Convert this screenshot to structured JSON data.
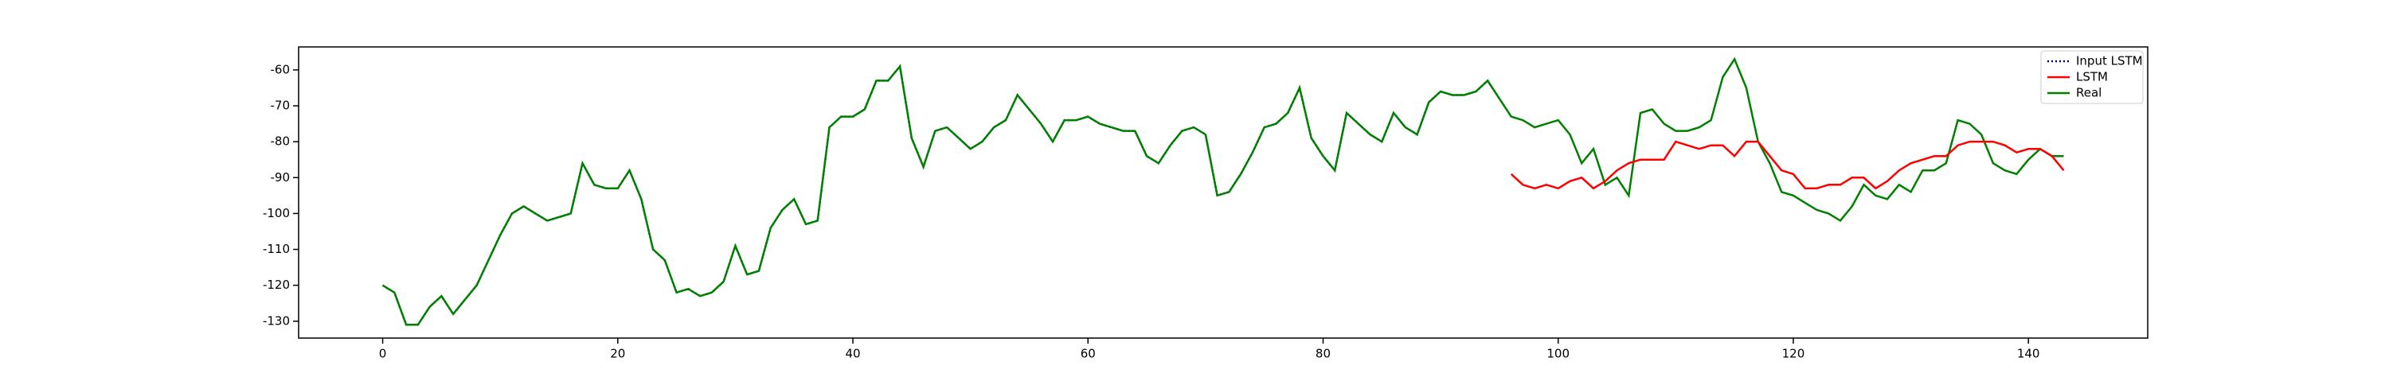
{
  "chart_data": {
    "type": "line",
    "x": [
      0,
      1,
      2,
      3,
      4,
      5,
      6,
      7,
      8,
      9,
      10,
      11,
      12,
      13,
      14,
      15,
      16,
      17,
      18,
      19,
      20,
      21,
      22,
      23,
      24,
      25,
      26,
      27,
      28,
      29,
      30,
      31,
      32,
      33,
      34,
      35,
      36,
      37,
      38,
      39,
      40,
      41,
      42,
      43,
      44,
      45,
      46,
      47,
      48,
      49,
      50,
      51,
      52,
      53,
      54,
      55,
      56,
      57,
      58,
      59,
      60,
      61,
      62,
      63,
      64,
      65,
      66,
      67,
      68,
      69,
      70,
      71,
      72,
      73,
      74,
      75,
      76,
      77,
      78,
      79,
      80,
      81,
      82,
      83,
      84,
      85,
      86,
      87,
      88,
      89,
      90,
      91,
      92,
      93,
      94,
      95,
      96,
      97,
      98,
      99,
      100,
      101,
      102,
      103,
      104,
      105,
      106,
      107,
      108,
      109,
      110,
      111,
      112,
      113,
      114,
      115,
      116,
      117,
      118,
      119,
      120,
      121,
      122,
      123,
      124,
      125,
      126,
      127,
      128,
      129,
      130,
      131,
      132,
      133,
      134,
      135,
      136,
      137,
      138,
      139,
      140,
      141,
      142,
      143
    ],
    "series": [
      {
        "name": "Input LSTM",
        "color": "#00008b",
        "dash": "dotted",
        "values": [
          -120,
          -122,
          -131,
          -131,
          -126,
          -123,
          -128,
          -124,
          -120,
          -113,
          -106,
          -100,
          -98,
          -100,
          -102,
          -101,
          -100,
          -86,
          -92,
          -93,
          -93,
          -88,
          -96,
          -110,
          -113,
          -122,
          -121,
          -123,
          -122,
          -119,
          -109,
          -117,
          -116,
          -104,
          -99,
          -96,
          -103,
          -102,
          -76,
          -73,
          -73,
          -71,
          -63,
          -63,
          -59,
          -79,
          -87,
          -77,
          -76,
          -79,
          -82,
          -80,
          -76,
          -74,
          -67,
          -71,
          -75,
          -80,
          -74,
          -74,
          -73,
          -75,
          -76,
          -77,
          -77,
          -84,
          -86,
          -81,
          -77,
          -76,
          -78,
          -95,
          -94,
          -89,
          -83,
          -76,
          -75,
          -72,
          -65,
          -79,
          -84,
          -88,
          -72,
          -75,
          -78,
          -80,
          -72,
          -76,
          -78,
          -69,
          -66,
          -67,
          -67,
          -66,
          -63,
          -68,
          null,
          null,
          null,
          null,
          null,
          null,
          null,
          null,
          null,
          null,
          null,
          null,
          null,
          null,
          null,
          null,
          null,
          null,
          null,
          null,
          null,
          null,
          null,
          null,
          null,
          null,
          null,
          null,
          null,
          null,
          null,
          null,
          null,
          null,
          null,
          null,
          null,
          null,
          null,
          null,
          null,
          null,
          null,
          null,
          null,
          null,
          null,
          null
        ]
      },
      {
        "name": "LSTM",
        "color": "#ff0000",
        "values": [
          null,
          null,
          null,
          null,
          null,
          null,
          null,
          null,
          null,
          null,
          null,
          null,
          null,
          null,
          null,
          null,
          null,
          null,
          null,
          null,
          null,
          null,
          null,
          null,
          null,
          null,
          null,
          null,
          null,
          null,
          null,
          null,
          null,
          null,
          null,
          null,
          null,
          null,
          null,
          null,
          null,
          null,
          null,
          null,
          null,
          null,
          null,
          null,
          null,
          null,
          null,
          null,
          null,
          null,
          null,
          null,
          null,
          null,
          null,
          null,
          null,
          null,
          null,
          null,
          null,
          null,
          null,
          null,
          null,
          null,
          null,
          null,
          null,
          null,
          null,
          null,
          null,
          null,
          null,
          null,
          null,
          null,
          null,
          null,
          null,
          null,
          null,
          null,
          null,
          null,
          null,
          null,
          null,
          null,
          null,
          null,
          -89,
          -92,
          -93,
          -92,
          -93,
          -91,
          -90,
          -93,
          -91,
          -88,
          -86,
          -85,
          -85,
          -85,
          -80,
          -81,
          -82,
          -81,
          -81,
          -84,
          -80,
          -80,
          -84,
          -88,
          -89,
          -93,
          -93,
          -92,
          -92,
          -90,
          -90,
          -93,
          -91,
          -88,
          -86,
          -85,
          -84,
          -84,
          -81,
          -80,
          -80,
          -80,
          -81,
          -83,
          -82,
          -82,
          -84,
          -88
        ]
      },
      {
        "name": "Real",
        "color": "#008000",
        "values": [
          -120,
          -122,
          -131,
          -131,
          -126,
          -123,
          -128,
          -124,
          -120,
          -113,
          -106,
          -100,
          -98,
          -100,
          -102,
          -101,
          -100,
          -86,
          -92,
          -93,
          -93,
          -88,
          -96,
          -110,
          -113,
          -122,
          -121,
          -123,
          -122,
          -119,
          -109,
          -117,
          -116,
          -104,
          -99,
          -96,
          -103,
          -102,
          -76,
          -73,
          -73,
          -71,
          -63,
          -63,
          -59,
          -79,
          -87,
          -77,
          -76,
          -79,
          -82,
          -80,
          -76,
          -74,
          -67,
          -71,
          -75,
          -80,
          -74,
          -74,
          -73,
          -75,
          -76,
          -77,
          -77,
          -84,
          -86,
          -81,
          -77,
          -76,
          -78,
          -95,
          -94,
          -89,
          -83,
          -76,
          -75,
          -72,
          -65,
          -79,
          -84,
          -88,
          -72,
          -75,
          -78,
          -80,
          -72,
          -76,
          -78,
          -69,
          -66,
          -67,
          -67,
          -66,
          -63,
          -68,
          -73,
          -74,
          -76,
          -75,
          -74,
          -78,
          -86,
          -82,
          -92,
          -90,
          -95,
          -72,
          -71,
          -75,
          -77,
          -77,
          -76,
          -74,
          -62,
          -57,
          -65,
          -80,
          -86,
          -94,
          -95,
          -97,
          -99,
          -100,
          -102,
          -98,
          -92,
          -95,
          -96,
          -92,
          -94,
          -88,
          -88,
          -86,
          -74,
          -75,
          -78,
          -86,
          -88,
          -89,
          -85,
          -82,
          -84,
          -84
        ]
      }
    ],
    "xlim": [
      -7.15,
      150.15
    ],
    "xticks": [
      0,
      20,
      40,
      60,
      80,
      100,
      120,
      140
    ],
    "ylim": [
      -134.7,
      -53.6
    ],
    "yticks": [
      -130,
      -120,
      -110,
      -100,
      -90,
      -80,
      -70,
      -60
    ],
    "legend": "upper right"
  }
}
